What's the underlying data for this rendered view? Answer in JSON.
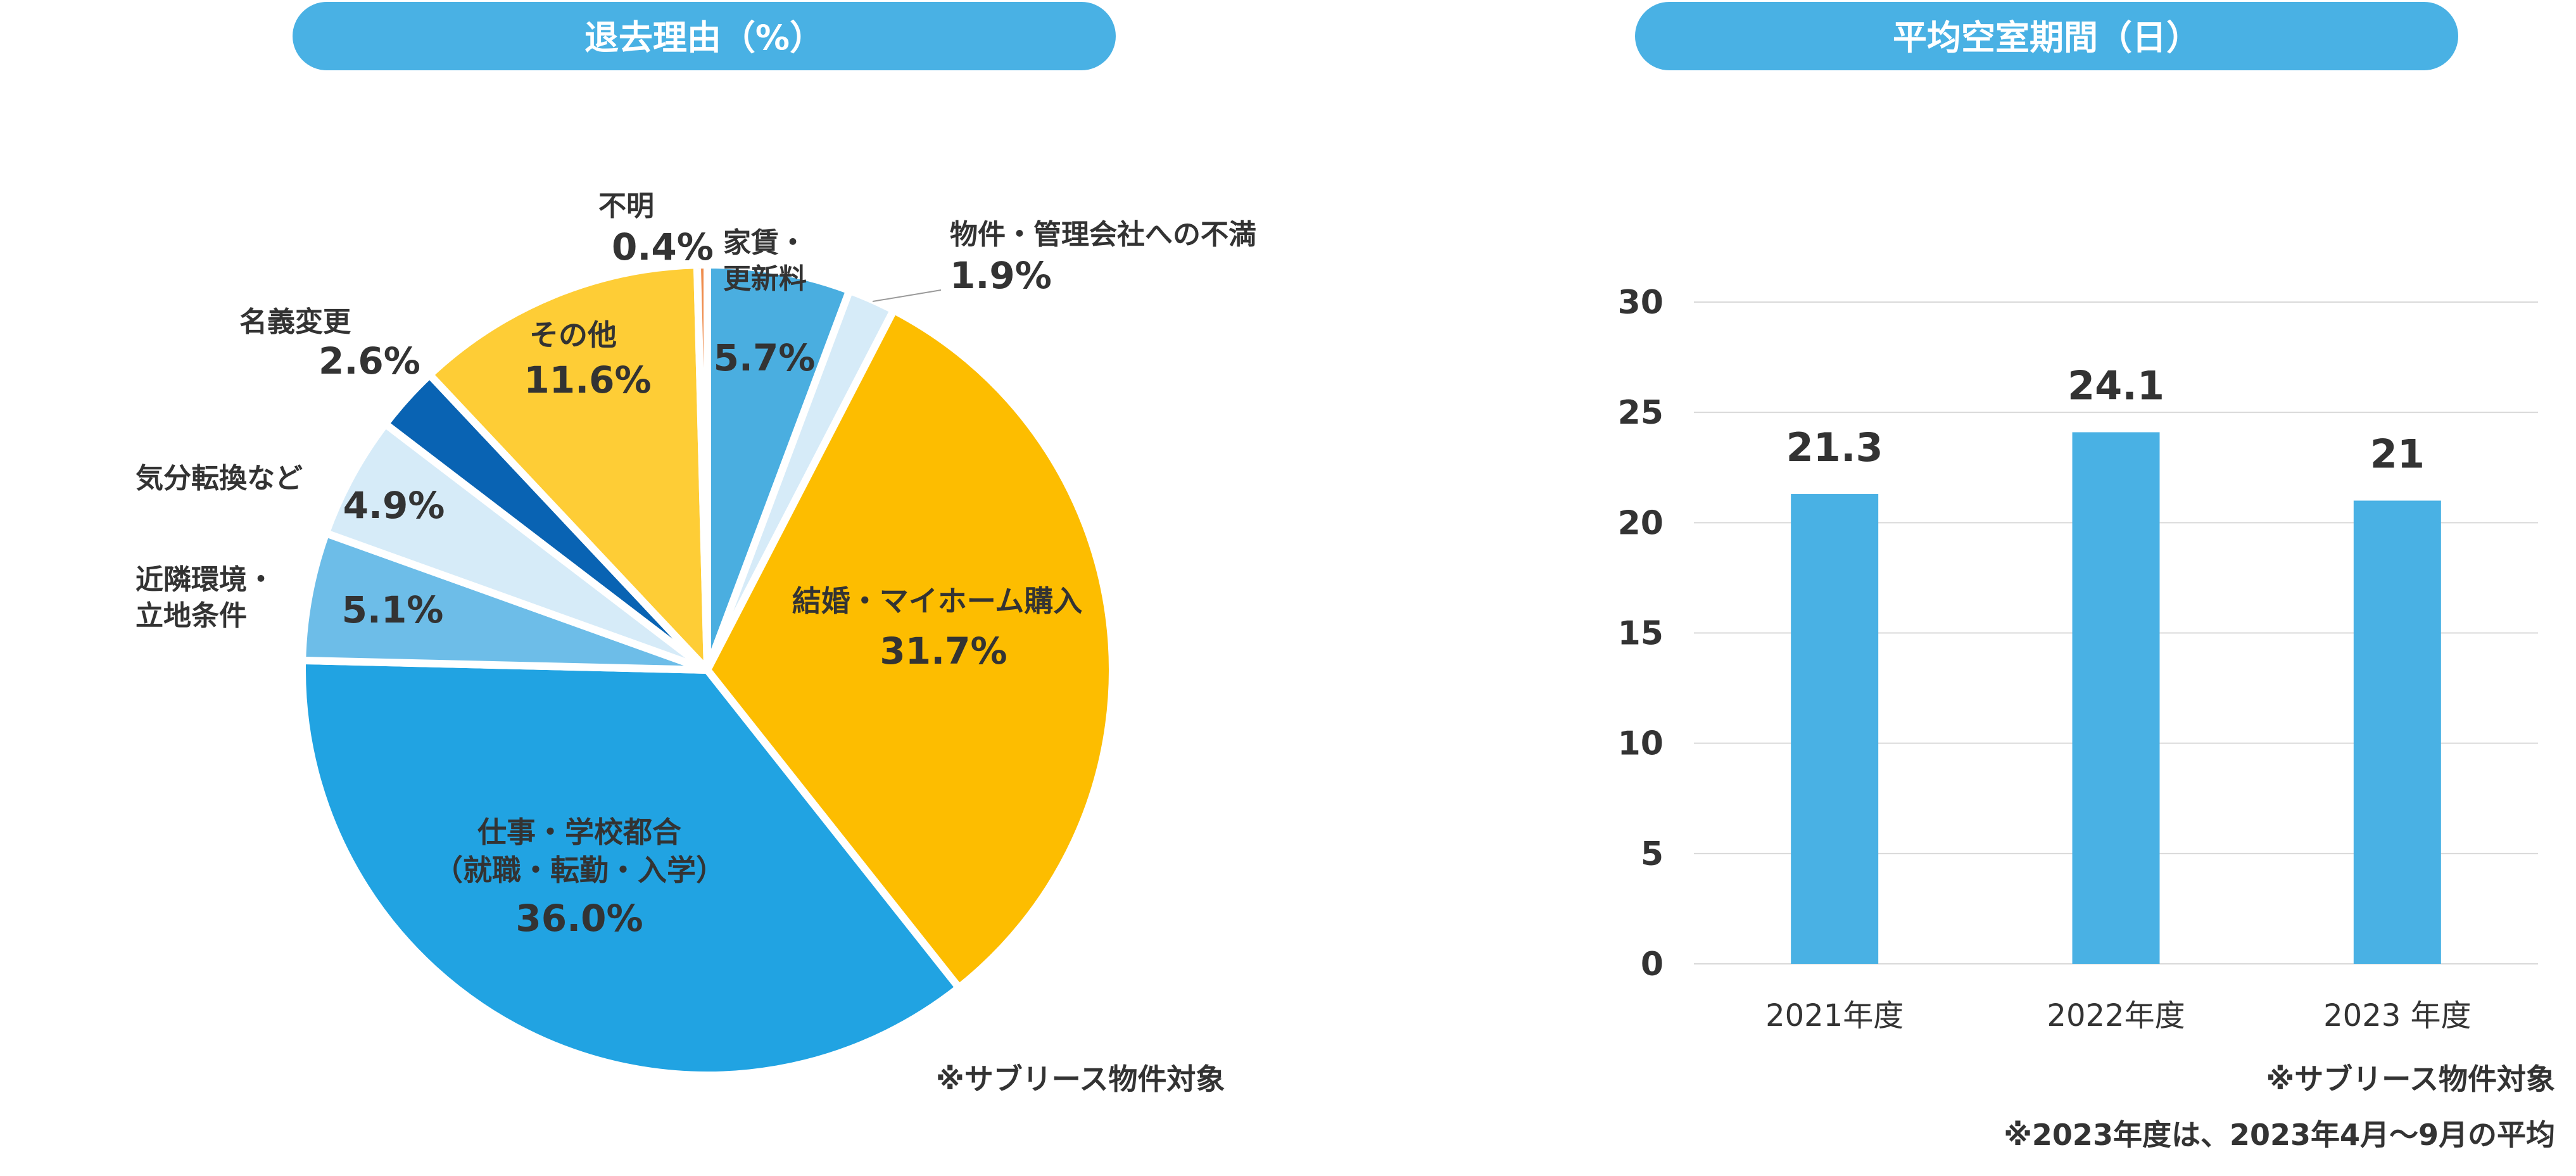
{
  "chart_data": [
    {
      "type": "pie",
      "title": "退去理由（%）",
      "unit": "%",
      "slices": [
        {
          "label": "家賃・\n更新料",
          "value": 5.7,
          "value_label": "5.7%",
          "color": "#4aaee0"
        },
        {
          "label": "物件・管理会社への不満",
          "value": 1.9,
          "value_label": "1.9%",
          "color": "#d6ebf8"
        },
        {
          "label": "結婚・マイホーム購入",
          "value": 31.7,
          "value_label": "31.7%",
          "color": "#fdbd00"
        },
        {
          "label": "仕事・学校都合\n（就職・転勤・入学）",
          "value": 36.0,
          "value_label": "36.0%",
          "color": "#21a3e2"
        },
        {
          "label": "近隣環境・\n立地条件",
          "value": 5.1,
          "value_label": "5.1%",
          "color": "#6dbde8"
        },
        {
          "label": "気分転換など",
          "value": 4.9,
          "value_label": "4.9%",
          "color": "#d6ebf8"
        },
        {
          "label": "名義変更",
          "value": 2.6,
          "value_label": "2.6%",
          "color": "#0963b3"
        },
        {
          "label": "その他",
          "value": 11.6,
          "value_label": "11.6%",
          "color": "#fecd36"
        },
        {
          "label": "不明",
          "value": 0.4,
          "value_label": "0.4%",
          "color": "#ef8c4c"
        }
      ],
      "note": "※サブリース物件対象"
    },
    {
      "type": "bar",
      "title": "平均空室期間（日）",
      "categories": [
        "2021年度",
        "2022年度",
        "2023 年度"
      ],
      "values": [
        21.3,
        24.1,
        21
      ],
      "data_labels": [
        "21.3",
        "24.1",
        "21"
      ],
      "ylim": [
        0,
        30
      ],
      "yticks": [
        0,
        5,
        10,
        15,
        20,
        25,
        30
      ],
      "grid": true,
      "bar_color": "#49b1e4",
      "notes": [
        "※サブリース物件対象",
        "※2023年度は、2023年4月～9月の平均"
      ]
    }
  ],
  "theme": {
    "header_color": "#49b1e4",
    "text_color": "#333333",
    "header_text_color": "#ffffff",
    "grid_color": "#d9d9d9"
  }
}
